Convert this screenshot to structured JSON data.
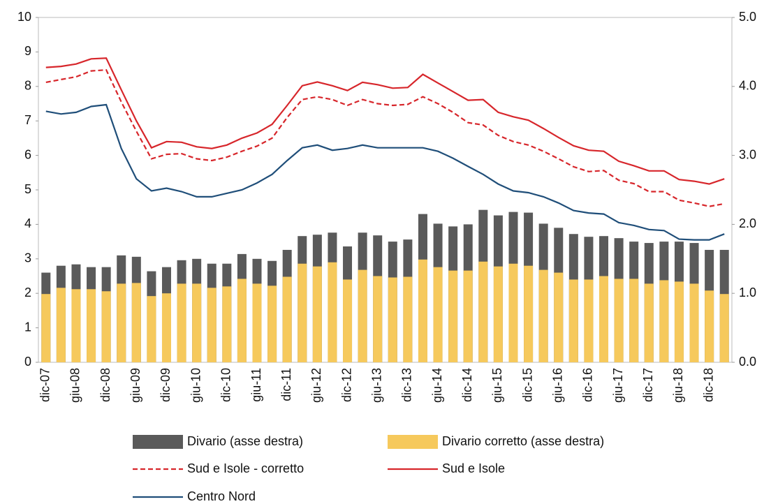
{
  "chart_data": {
    "type": "combo",
    "categories": [
      "dic-07",
      null,
      "giu-08",
      null,
      "dic-08",
      null,
      "giu-09",
      null,
      "dic-09",
      null,
      "giu-10",
      null,
      "dic-10",
      null,
      "giu-11",
      null,
      "dic-11",
      null,
      "giu-12",
      null,
      "dic-12",
      null,
      "giu-13",
      null,
      "dic-13",
      null,
      "giu-14",
      null,
      "dic-14",
      null,
      "giu-15",
      null,
      "dic-15",
      null,
      "giu-16",
      null,
      "dic-16",
      null,
      "giu-17",
      null,
      "dic-17",
      null,
      "giu-18",
      null,
      "dic-18",
      null
    ],
    "ylim": [
      0,
      10
    ],
    "yticks": [
      0,
      1,
      2,
      3,
      4,
      5,
      6,
      7,
      8,
      9,
      10
    ],
    "y2lim": [
      0,
      5
    ],
    "y2ticks": [
      {
        "value": 0,
        "label": "0.0"
      },
      {
        "value": 1,
        "label": "1.0"
      },
      {
        "value": 2,
        "label": "2.0"
      },
      {
        "value": 3,
        "label": "3.0"
      },
      {
        "value": 4,
        "label": "4.0"
      },
      {
        "value": 5,
        "label": "5.0"
      }
    ],
    "series": [
      {
        "name": "Divario (asse destra)",
        "type": "bar",
        "axis": "y2",
        "color": "#5a5a5a",
        "values": [
          1.3,
          1.4,
          1.42,
          1.38,
          1.38,
          1.55,
          1.53,
          1.32,
          1.38,
          1.48,
          1.5,
          1.43,
          1.43,
          1.57,
          1.5,
          1.47,
          1.63,
          1.83,
          1.85,
          1.88,
          1.68,
          1.88,
          1.84,
          1.75,
          1.78,
          2.15,
          2.01,
          1.97,
          2.0,
          2.21,
          2.13,
          2.18,
          2.17,
          2.01,
          1.95,
          1.86,
          1.82,
          1.83,
          1.8,
          1.75,
          1.73,
          1.75,
          1.75,
          1.73,
          1.63,
          1.63
        ]
      },
      {
        "name": "Divario corretto (asse destra)",
        "type": "bar",
        "axis": "y2",
        "color": "#f6c95c",
        "values": [
          0.99,
          1.08,
          1.06,
          1.06,
          1.03,
          1.14,
          1.15,
          0.96,
          1.0,
          1.14,
          1.14,
          1.08,
          1.1,
          1.21,
          1.14,
          1.11,
          1.24,
          1.43,
          1.39,
          1.45,
          1.2,
          1.34,
          1.25,
          1.23,
          1.24,
          1.49,
          1.38,
          1.33,
          1.33,
          1.46,
          1.39,
          1.43,
          1.4,
          1.34,
          1.3,
          1.2,
          1.2,
          1.25,
          1.21,
          1.21,
          1.14,
          1.19,
          1.17,
          1.14,
          1.04,
          0.99
        ]
      },
      {
        "name": "Sud e Isole - corretto",
        "type": "line",
        "dashed": true,
        "color": "#d7262b",
        "values": [
          8.12,
          8.2,
          8.28,
          8.45,
          8.48,
          7.55,
          6.7,
          5.9,
          6.03,
          6.05,
          5.9,
          5.85,
          5.95,
          6.12,
          6.27,
          6.5,
          7.1,
          7.62,
          7.7,
          7.62,
          7.45,
          7.62,
          7.5,
          7.45,
          7.48,
          7.7,
          7.5,
          7.25,
          6.95,
          6.88,
          6.58,
          6.4,
          6.3,
          6.12,
          5.9,
          5.67,
          5.53,
          5.56,
          5.28,
          5.18,
          4.95,
          4.95,
          4.7,
          4.62,
          4.52,
          4.6
        ]
      },
      {
        "name": "Sud e Isole",
        "type": "line",
        "dashed": false,
        "color": "#d7262b",
        "values": [
          8.55,
          8.58,
          8.65,
          8.8,
          8.82,
          7.9,
          7.0,
          6.22,
          6.4,
          6.38,
          6.25,
          6.2,
          6.3,
          6.5,
          6.65,
          6.9,
          7.45,
          8.02,
          8.13,
          8.02,
          7.88,
          8.12,
          8.05,
          7.95,
          7.97,
          8.35,
          8.1,
          7.85,
          7.6,
          7.62,
          7.25,
          7.12,
          7.02,
          6.78,
          6.52,
          6.28,
          6.15,
          6.12,
          5.83,
          5.7,
          5.55,
          5.55,
          5.3,
          5.25,
          5.17,
          5.32
        ]
      },
      {
        "name": "Centro Nord",
        "type": "line",
        "dashed": false,
        "color": "#1f4e79",
        "values": [
          7.28,
          7.2,
          7.25,
          7.42,
          7.47,
          6.2,
          5.32,
          4.97,
          5.05,
          4.95,
          4.8,
          4.8,
          4.9,
          5.0,
          5.2,
          5.45,
          5.85,
          6.22,
          6.3,
          6.15,
          6.2,
          6.3,
          6.22,
          6.22,
          6.22,
          6.22,
          6.12,
          5.92,
          5.68,
          5.45,
          5.17,
          4.97,
          4.92,
          4.8,
          4.62,
          4.4,
          4.33,
          4.3,
          4.05,
          3.97,
          3.85,
          3.82,
          3.57,
          3.55,
          3.55,
          3.72
        ]
      }
    ]
  }
}
